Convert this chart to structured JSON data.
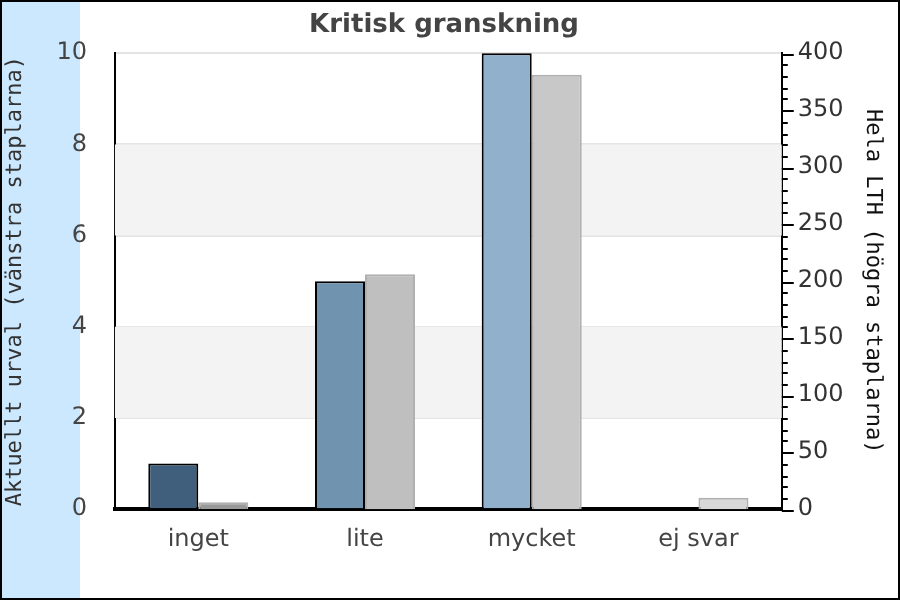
{
  "chart_data": {
    "type": "bar",
    "title": "Kritisk granskning",
    "ylabel": "Aktuellt urval (vänstra staplarna)",
    "y2label": "Hela LTH (högra staplarna)",
    "categories": [
      "inget",
      "lite",
      "mycket",
      "ej svar"
    ],
    "series": [
      {
        "colors": [
          "#3f5f7c",
          "#7093b0",
          "#90b0cc",
          "#a8c4dc"
        ],
        "values": [
          1,
          5,
          10,
          0
        ]
      },
      {
        "colors": [
          "#999999",
          "#bfbfbf",
          "#c8c8c8",
          "#d8d8d8"
        ],
        "values": [
          6,
          206,
          381,
          10
        ],
        "axis": "y2"
      }
    ],
    "ylim": [
      0,
      10
    ],
    "yticks": [
      0,
      2,
      4,
      6,
      8,
      10
    ],
    "y2lim": [
      0,
      400
    ],
    "y2ticks": [
      0,
      {
        "value": 10,
        "label": null
      },
      {
        "value": 20,
        "label": null
      },
      {
        "value": 30,
        "label": null
      },
      {
        "value": 40,
        "label": null
      },
      50,
      {
        "value": 60,
        "label": null
      },
      {
        "value": 70,
        "label": null
      },
      {
        "value": 80,
        "label": null
      },
      {
        "value": 90,
        "label": null
      },
      100,
      {
        "value": 110,
        "label": null
      },
      {
        "value": 120,
        "label": null
      },
      {
        "value": 130,
        "label": null
      },
      {
        "value": 140,
        "label": null
      },
      150,
      {
        "value": 160,
        "label": null
      },
      {
        "value": 170,
        "label": null
      },
      {
        "value": 180,
        "label": null
      },
      {
        "value": 190,
        "label": null
      },
      200,
      {
        "value": 210,
        "label": null
      },
      {
        "value": 220,
        "label": null
      },
      {
        "value": 230,
        "label": null
      },
      {
        "value": 240,
        "label": null
      },
      250,
      {
        "value": 260,
        "label": null
      },
      {
        "value": 270,
        "label": null
      },
      {
        "value": 280,
        "label": null
      },
      {
        "value": 290,
        "label": null
      },
      300,
      {
        "value": 310,
        "label": null
      },
      {
        "value": 320,
        "label": null
      },
      {
        "value": 330,
        "label": null
      },
      {
        "value": 340,
        "label": null
      },
      350,
      {
        "value": 360,
        "label": null
      },
      {
        "value": 370,
        "label": null
      },
      {
        "value": 380,
        "label": null
      },
      {
        "value": 390,
        "label": null
      },
      400
    ],
    "grid": "y",
    "legend": false
  }
}
